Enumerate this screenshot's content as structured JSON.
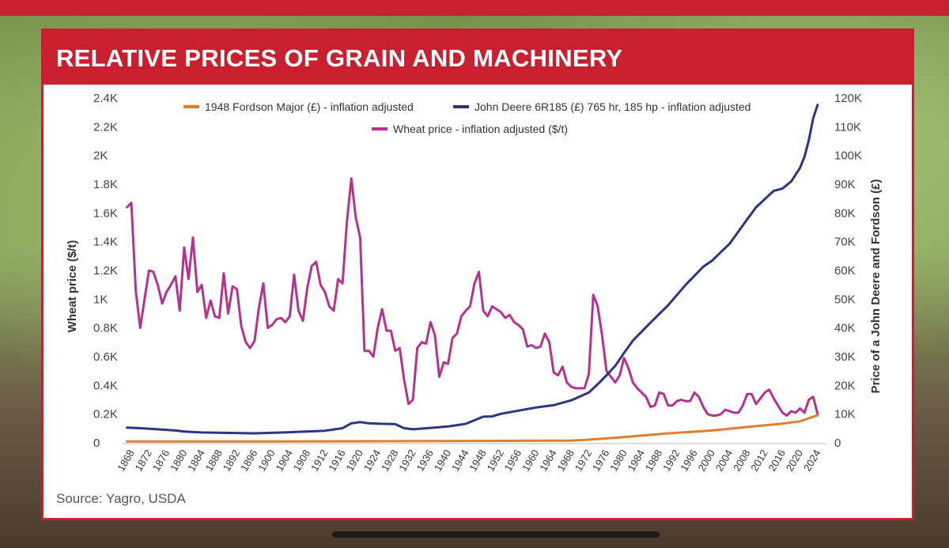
{
  "header": {
    "title": "RELATIVE PRICES OF GRAIN AND MACHINERY"
  },
  "source": "Source: Yagro, USDA",
  "colors": {
    "brand": "#c8202e",
    "wheat": "#b5328e",
    "deere": "#2b3580",
    "fordson": "#e07e2c"
  },
  "chart_data": {
    "type": "line",
    "title": "RELATIVE PRICES OF GRAIN AND MACHINERY",
    "ylabel_left": "Wheat price ($/t)",
    "ylabel_right": "Price of a John Deere and Fordson (£)",
    "ylim_left": [
      0,
      2400
    ],
    "ylim_right": [
      0,
      120000
    ],
    "xlim": [
      1866,
      2026
    ],
    "left_ticks": [
      {
        "v": 0,
        "label": "0"
      },
      {
        "v": 200,
        "label": "0.2K"
      },
      {
        "v": 400,
        "label": "0.4K"
      },
      {
        "v": 600,
        "label": "0.6K"
      },
      {
        "v": 800,
        "label": "0.8K"
      },
      {
        "v": 1000,
        "label": "1K"
      },
      {
        "v": 1200,
        "label": "1.2K"
      },
      {
        "v": 1400,
        "label": "1.4K"
      },
      {
        "v": 1600,
        "label": "1.6K"
      },
      {
        "v": 1800,
        "label": "1.8K"
      },
      {
        "v": 2000,
        "label": "2K"
      },
      {
        "v": 2200,
        "label": "2.2K"
      },
      {
        "v": 2400,
        "label": "2.4K"
      }
    ],
    "right_ticks": [
      {
        "v": 0,
        "label": "0"
      },
      {
        "v": 10000,
        "label": "10K"
      },
      {
        "v": 20000,
        "label": "20K"
      },
      {
        "v": 30000,
        "label": "30K"
      },
      {
        "v": 40000,
        "label": "40K"
      },
      {
        "v": 50000,
        "label": "50K"
      },
      {
        "v": 60000,
        "label": "60K"
      },
      {
        "v": 70000,
        "label": "70K"
      },
      {
        "v": 80000,
        "label": "80K"
      },
      {
        "v": 90000,
        "label": "90K"
      },
      {
        "v": 100000,
        "label": "100K"
      },
      {
        "v": 110000,
        "label": "110K"
      },
      {
        "v": 120000,
        "label": "120K"
      }
    ],
    "x_ticks": [
      "1868",
      "1872",
      "1876",
      "1880",
      "1884",
      "1888",
      "1892",
      "1896",
      "1900",
      "1904",
      "1908",
      "1912",
      "1916",
      "1920",
      "1924",
      "1928",
      "1932",
      "1936",
      "1940",
      "1944",
      "1948",
      "1952",
      "1956",
      "1960",
      "1964",
      "1968",
      "1972",
      "1976",
      "1980",
      "1984",
      "1988",
      "1992",
      "1996",
      "2000",
      "2004",
      "2008",
      "2012",
      "2016",
      "2020",
      "2024"
    ],
    "legend": [
      {
        "name": "1948 Fordson Major (£) - inflation adjusted",
        "color": "#e07e2c"
      },
      {
        "name": "John Deere 6R185 (£) 765 hr, 185 hp - inflation adjusted",
        "color": "#2b3580"
      },
      {
        "name": "Wheat price - inflation adjusted ($/t)",
        "color": "#b5328e"
      }
    ],
    "series": [
      {
        "name": "Wheat price - inflation adjusted ($/t)",
        "axis": "left",
        "color": "#b5328e",
        "x": [
          1867,
          1868,
          1869,
          1870,
          1871,
          1872,
          1873,
          1874,
          1875,
          1876,
          1877,
          1878,
          1879,
          1880,
          1881,
          1882,
          1883,
          1884,
          1885,
          1886,
          1887,
          1888,
          1889,
          1890,
          1891,
          1892,
          1893,
          1894,
          1895,
          1896,
          1897,
          1898,
          1899,
          1900,
          1901,
          1902,
          1903,
          1904,
          1905,
          1906,
          1907,
          1908,
          1909,
          1910,
          1911,
          1912,
          1913,
          1914,
          1915,
          1916,
          1917,
          1918,
          1919,
          1920,
          1921,
          1922,
          1923,
          1924,
          1925,
          1926,
          1927,
          1928,
          1929,
          1930,
          1931,
          1932,
          1933,
          1934,
          1935,
          1936,
          1937,
          1938,
          1939,
          1940,
          1941,
          1942,
          1943,
          1944,
          1945,
          1946,
          1947,
          1948,
          1949,
          1950,
          1951,
          1952,
          1953,
          1954,
          1955,
          1956,
          1957,
          1958,
          1959,
          1960,
          1961,
          1962,
          1963,
          1964,
          1965,
          1966,
          1967,
          1968,
          1969,
          1970,
          1971,
          1972,
          1973,
          1974,
          1975,
          1976,
          1977,
          1978,
          1979,
          1980,
          1981,
          1982,
          1983,
          1984,
          1985,
          1986,
          1987,
          1988,
          1989,
          1990,
          1991,
          1992,
          1993,
          1994,
          1995,
          1996,
          1997,
          1998,
          1999,
          2000,
          2001,
          2002,
          2003,
          2004,
          2005,
          2006,
          2007,
          2008,
          2009,
          2010,
          2011,
          2012,
          2013,
          2014,
          2015,
          2016,
          2017,
          2018,
          2019,
          2020,
          2021,
          2022,
          2023,
          2024
        ],
        "values": [
          1640,
          1670,
          1060,
          800,
          1000,
          1200,
          1190,
          1100,
          970,
          1050,
          1100,
          1160,
          920,
          1360,
          1140,
          1430,
          1050,
          1100,
          870,
          990,
          880,
          870,
          1180,
          900,
          1090,
          1070,
          810,
          700,
          660,
          710,
          940,
          1110,
          800,
          820,
          860,
          870,
          840,
          880,
          1170,
          920,
          850,
          1080,
          1230,
          1260,
          1100,
          1050,
          950,
          920,
          1140,
          1110,
          1540,
          1840,
          1570,
          1430,
          640,
          640,
          600,
          800,
          930,
          780,
          780,
          640,
          660,
          440,
          270,
          300,
          660,
          700,
          690,
          840,
          750,
          460,
          560,
          550,
          730,
          760,
          880,
          920,
          950,
          1110,
          1190,
          920,
          880,
          950,
          930,
          910,
          870,
          890,
          840,
          820,
          790,
          670,
          680,
          660,
          670,
          760,
          700,
          490,
          470,
          530,
          420,
          390,
          380,
          380,
          380,
          480,
          1030,
          950,
          750,
          500,
          460,
          420,
          470,
          590,
          520,
          420,
          380,
          350,
          320,
          250,
          260,
          350,
          340,
          260,
          260,
          290,
          300,
          290,
          290,
          350,
          320,
          250,
          200,
          190,
          190,
          200,
          230,
          220,
          210,
          210,
          260,
          340,
          340,
          270,
          310,
          350,
          370,
          310,
          260,
          210,
          190,
          220,
          210,
          240,
          210,
          300,
          320,
          200
        ]
      },
      {
        "name": "John Deere 6R185 (£) 765 hr, 185 hp - inflation adjusted",
        "axis": "right",
        "color": "#2b3580",
        "x": [
          1867,
          1870,
          1874,
          1878,
          1880,
          1884,
          1896,
          1904,
          1912,
          1916,
          1918,
          1920,
          1922,
          1924,
          1928,
          1930,
          1932,
          1936,
          1940,
          1944,
          1948,
          1950,
          1952,
          1956,
          1960,
          1964,
          1968,
          1972,
          1974,
          1976,
          1978,
          1980,
          1982,
          1986,
          1990,
          1994,
          1998,
          2000,
          2004,
          2008,
          2010,
          2014,
          2016,
          2018,
          2020,
          2021,
          2022,
          2023,
          2024
        ],
        "values": [
          5300,
          5100,
          4700,
          4300,
          3900,
          3600,
          3300,
          3700,
          4200,
          5100,
          6800,
          7200,
          6800,
          6700,
          6500,
          5100,
          4700,
          5200,
          5700,
          6600,
          9100,
          9200,
          10100,
          11200,
          12300,
          13100,
          14800,
          17500,
          20400,
          23500,
          26800,
          31300,
          35600,
          41800,
          47900,
          55000,
          61300,
          63400,
          69300,
          77800,
          82000,
          87700,
          88500,
          91000,
          95700,
          99500,
          105400,
          113000,
          117600
        ]
      },
      {
        "name": "1948 Fordson Major (£) - inflation adjusted",
        "axis": "right",
        "color": "#e07e2c",
        "x": [
          1867,
          1900,
          1940,
          1968,
          1972,
          1980,
          1990,
          2000,
          2010,
          2016,
          2020,
          2024
        ],
        "values": [
          500,
          500,
          600,
          800,
          1100,
          2000,
          3300,
          4300,
          5800,
          6700,
          7500,
          9600
        ]
      }
    ]
  }
}
